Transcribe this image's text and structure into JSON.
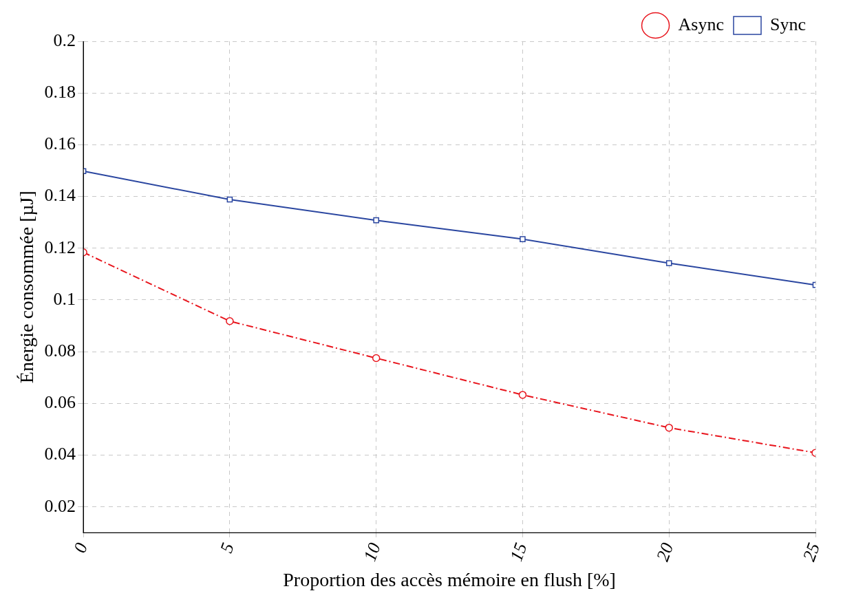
{
  "chart_data": {
    "type": "line",
    "xlabel": "Proportion des accès mémoire en flush [%]",
    "ylabel": "Énergie consommée [µJ]",
    "x": [
      0,
      5,
      10,
      15,
      20,
      25
    ],
    "series": [
      {
        "name": "Async",
        "color": "#e8141c",
        "values": [
          0.1184,
          0.0918,
          0.0775,
          0.0633,
          0.0506,
          0.0409
        ],
        "marker": "circle",
        "line_style": "dashed"
      },
      {
        "name": "Sync",
        "color": "#2a46a0",
        "values": [
          0.1498,
          0.1388,
          0.1308,
          0.1235,
          0.1142,
          0.1058
        ],
        "marker": "square",
        "line_style": "solid"
      }
    ],
    "xlim": [
      0,
      25
    ],
    "xticks": [
      0,
      5,
      10,
      15,
      20,
      25
    ],
    "ylim": [
      0.01,
      0.2
    ],
    "yticks": [
      0.02,
      0.04,
      0.06,
      0.08,
      0.1,
      0.12,
      0.14,
      0.16,
      0.18,
      0.2
    ],
    "grid": true,
    "legend": "top right"
  }
}
